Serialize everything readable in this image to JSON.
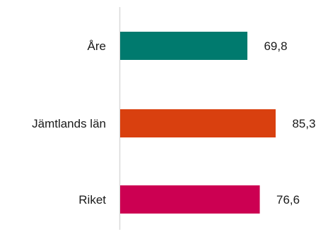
{
  "chart_data": {
    "type": "bar",
    "orientation": "horizontal",
    "categories": [
      "Åre",
      "Jämtlands län",
      "Riket"
    ],
    "values": [
      69.8,
      85.3,
      76.6
    ],
    "value_labels": [
      "69,8",
      "85,3",
      "76,6"
    ],
    "colors": [
      "#007a6e",
      "#d9400f",
      "#cc0052"
    ],
    "title": "",
    "xlabel": "",
    "ylabel": "",
    "xlim": [
      0,
      100
    ],
    "grid": false,
    "legend": "none"
  }
}
